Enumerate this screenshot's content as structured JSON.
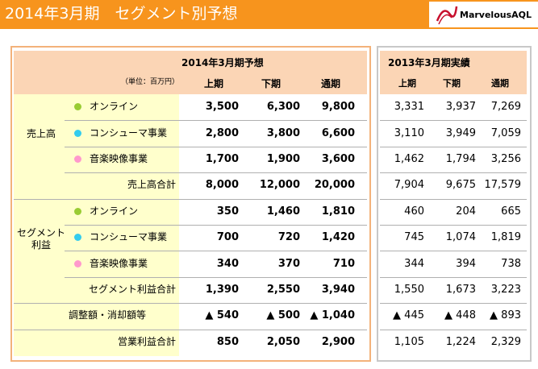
{
  "header": {
    "title": "2014年3月期　セグメント別予想",
    "logo": "MarvelousAQL"
  },
  "forecast": {
    "title": "2014年3月期予想",
    "unit": "（単位：百万円）",
    "columns": [
      "上期",
      "下期",
      "通期"
    ]
  },
  "actual": {
    "title": "2013年3月期実績",
    "columns": [
      "上期",
      "下期",
      "通期"
    ]
  },
  "sections": [
    {
      "label": "売上高",
      "items": [
        {
          "label": "オンライン",
          "color": "#99cc33",
          "forecast": [
            "3,500",
            "6,300",
            "9,800"
          ],
          "actual": [
            "3,331",
            "3,937",
            "7,269"
          ]
        },
        {
          "label": "コンシューマ事業",
          "color": "#33ccee",
          "forecast": [
            "2,800",
            "3,800",
            "6,600"
          ],
          "actual": [
            "3,110",
            "3,949",
            "7,059"
          ]
        },
        {
          "label": "音楽映像事業",
          "color": "#ff99cc",
          "forecast": [
            "1,700",
            "1,900",
            "3,600"
          ],
          "actual": [
            "1,462",
            "1,794",
            "3,256"
          ]
        }
      ],
      "total": {
        "label": "売上高合計",
        "forecast": [
          "8,000",
          "12,000",
          "20,000"
        ],
        "actual": [
          "7,904",
          "9,675",
          "17,579"
        ]
      }
    },
    {
      "label": "セグメント利益",
      "items": [
        {
          "label": "オンライン",
          "color": "#99cc33",
          "forecast": [
            "350",
            "1,460",
            "1,810"
          ],
          "actual": [
            "460",
            "204",
            "665"
          ]
        },
        {
          "label": "コンシューマ事業",
          "color": "#33ccee",
          "forecast": [
            "700",
            "720",
            "1,420"
          ],
          "actual": [
            "745",
            "1,074",
            "1,819"
          ]
        },
        {
          "label": "音楽映像事業",
          "color": "#ff99cc",
          "forecast": [
            "340",
            "370",
            "710"
          ],
          "actual": [
            "344",
            "394",
            "738"
          ]
        }
      ],
      "total": {
        "label": "セグメント利益合計",
        "forecast": [
          "1,390",
          "2,550",
          "3,940"
        ],
        "actual": [
          "1,550",
          "1,673",
          "3,223"
        ]
      }
    },
    {
      "items": [
        {
          "label": "調整額・消却額等",
          "forecast": [
            "▲ 540",
            "▲ 500",
            "▲ 1,040"
          ],
          "actual": [
            "▲ 445",
            "▲ 448",
            "▲ 893"
          ]
        }
      ],
      "total": {
        "label": "営業利益合計",
        "forecast": [
          "850",
          "2,050",
          "2,900"
        ],
        "actual": [
          "1,105",
          "1,224",
          "2,329"
        ]
      }
    }
  ]
}
